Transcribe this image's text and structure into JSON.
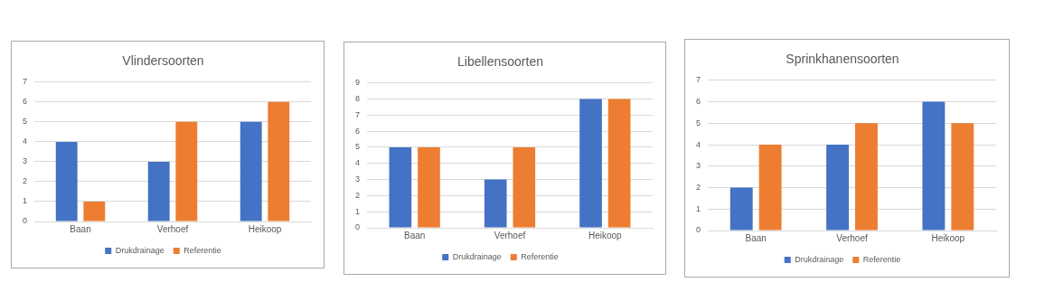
{
  "chart_data": [
    {
      "type": "bar",
      "title": "Vlindersoorten",
      "categories": [
        "Baan",
        "Verhoef",
        "Heikoop"
      ],
      "series": [
        {
          "name": "Drukdrainage",
          "color": "#4472c4",
          "values": [
            4,
            3,
            5
          ]
        },
        {
          "name": "Referentie",
          "color": "#ed7d31",
          "values": [
            1,
            5,
            6
          ]
        }
      ],
      "ylim": [
        0,
        7
      ],
      "yticks": [
        0,
        1,
        2,
        3,
        4,
        5,
        6,
        7
      ],
      "grid": "y",
      "legend": "bottom"
    },
    {
      "type": "bar",
      "title": "Libellensoorten",
      "categories": [
        "Baan",
        "Verhoef",
        "Heikoop"
      ],
      "series": [
        {
          "name": "Drukdrainage",
          "color": "#4472c4",
          "values": [
            5,
            3,
            8
          ]
        },
        {
          "name": "Referentie",
          "color": "#ed7d31",
          "values": [
            5,
            5,
            8
          ]
        }
      ],
      "ylim": [
        0,
        9
      ],
      "yticks": [
        0,
        1,
        2,
        3,
        4,
        5,
        6,
        7,
        8,
        9
      ],
      "grid": "y",
      "legend": "bottom"
    },
    {
      "type": "bar",
      "title": "Sprinkhanensoorten",
      "categories": [
        "Baan",
        "Verhoef",
        "Heikoop"
      ],
      "series": [
        {
          "name": "Drukdrainage",
          "color": "#4472c4",
          "values": [
            2,
            4,
            6
          ]
        },
        {
          "name": "Referentie",
          "color": "#ed7d31",
          "values": [
            4,
            5,
            5
          ]
        }
      ],
      "ylim": [
        0,
        7
      ],
      "yticks": [
        0,
        1,
        2,
        3,
        4,
        5,
        6,
        7
      ],
      "grid": "y",
      "legend": "bottom"
    }
  ]
}
